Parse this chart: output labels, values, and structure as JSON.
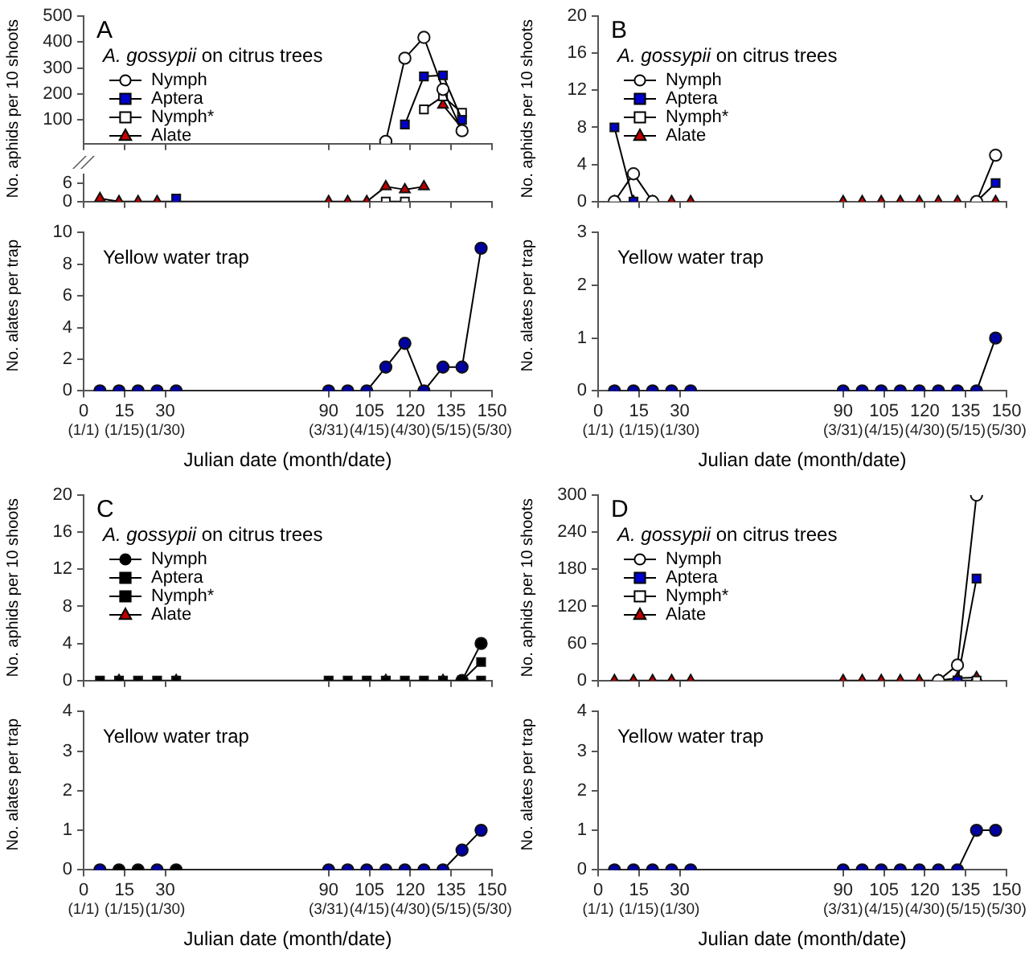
{
  "chart_data": [
    {
      "type": "line",
      "title": "A",
      "subtitle": "A. gossypii on citrus trees",
      "ylabel": "No. aphids per 10 shoots",
      "x": [
        111,
        118,
        125,
        132,
        139
      ],
      "xlim": [
        0,
        150
      ],
      "xticks": [
        0,
        15,
        30,
        90,
        105,
        120,
        135,
        150
      ],
      "ylim": [
        9,
        500
      ],
      "yticks": [
        100,
        200,
        300,
        400,
        500
      ],
      "tick_labels": "y",
      "legend": "left",
      "series": [
        {
          "name": "Nymph",
          "color": "#ffffff",
          "marker": "circle",
          "values": [
            18,
            338,
            418,
            218,
            59
          ]
        },
        {
          "name": "Aptera",
          "color": "#0000cc",
          "marker": "square",
          "values": [
            null,
            83,
            268,
            272,
            101
          ]
        },
        {
          "name": "Nymph*",
          "color": "#ffffff",
          "marker": "square",
          "values": [
            null,
            null,
            141,
            191,
            128
          ]
        },
        {
          "name": "Alate",
          "color": "#c00000",
          "marker": "triangle",
          "values": [
            null,
            null,
            null,
            158,
            68
          ]
        }
      ]
    },
    {
      "type": "line",
      "x": [
        6,
        13,
        20,
        27,
        34,
        90,
        97,
        104,
        111,
        118,
        125
      ],
      "xlim": [
        0,
        150
      ],
      "xticks": [
        0,
        15,
        30,
        90,
        105,
        120,
        135,
        150
      ],
      "ylim": [
        0,
        9
      ],
      "yticks": [
        0,
        6
      ],
      "tick_labels": "y",
      "series": [
        {
          "color": "#0000cc",
          "marker": "square",
          "values": [
            null,
            null,
            null,
            null,
            1,
            null,
            null,
            null,
            null,
            null,
            null
          ]
        },
        {
          "color": "#ffffff",
          "marker": "square",
          "values": [
            null,
            null,
            null,
            null,
            null,
            null,
            null,
            null,
            0,
            0,
            null
          ]
        },
        {
          "color": "#c00000",
          "marker": "triangle",
          "values": [
            1,
            0,
            0,
            0,
            0,
            0,
            0,
            0,
            5,
            4,
            5
          ]
        }
      ]
    },
    {
      "type": "line",
      "title": "Yellow water trap",
      "ylabel": "No. alates per trap",
      "xlabel": "Julian date (month/date)",
      "x": [
        6,
        13,
        20,
        27,
        34,
        90,
        97,
        104,
        111,
        118,
        125,
        132,
        139,
        146
      ],
      "xlim": [
        0,
        150
      ],
      "xticks": [
        0,
        15,
        30,
        90,
        105,
        120,
        135,
        150
      ],
      "ylim": [
        0,
        10
      ],
      "yticks": [
        0,
        2,
        4,
        6,
        8,
        10
      ],
      "marker": "circle",
      "annotations": [
        "(1/1)",
        "(1/15)",
        "(1/30)",
        "(3/31)",
        "(4/15)",
        "(4/30)",
        "(5/15)",
        "(5/30)"
      ],
      "series": [
        {
          "color": "#0000a0",
          "values": [
            0,
            0,
            0,
            0,
            0,
            0,
            0,
            0,
            1.5,
            3,
            0,
            1.5,
            1.5,
            9
          ]
        }
      ]
    },
    {
      "type": "line",
      "title": "B",
      "subtitle": "A. gossypii on citrus trees",
      "ylabel": "No. aphids per 10 shoots",
      "x": [
        6,
        13,
        20,
        27,
        34,
        90,
        97,
        104,
        111,
        118,
        125,
        132,
        139,
        146
      ],
      "xlim": [
        0,
        150
      ],
      "xticks": [
        0,
        15,
        30,
        90,
        105,
        120,
        135,
        150
      ],
      "ylim": [
        0,
        20
      ],
      "yticks": [
        0,
        4,
        8,
        12,
        16,
        20
      ],
      "tick_labels": "y",
      "legend": "left",
      "series": [
        {
          "name": "Nymph",
          "color": "#ffffff",
          "marker": "circle",
          "values": [
            0,
            3,
            0,
            null,
            null,
            null,
            null,
            null,
            null,
            null,
            null,
            null,
            0,
            5
          ]
        },
        {
          "name": "Aptera",
          "color": "#0000cc",
          "marker": "square",
          "values": [
            8,
            0,
            null,
            null,
            null,
            null,
            null,
            null,
            null,
            null,
            null,
            null,
            0,
            2
          ]
        },
        {
          "name": "Nymph*",
          "color": "#ffffff",
          "marker": "square",
          "values": [
            null,
            null,
            null,
            null,
            null,
            null,
            null,
            null,
            null,
            null,
            null,
            null,
            null,
            null
          ]
        },
        {
          "name": "Alate",
          "type": "scatter",
          "color": "#c00000",
          "marker": "triangle",
          "values": [
            0,
            0,
            0,
            0,
            0,
            0,
            0,
            0,
            0,
            0,
            0,
            0,
            null,
            0
          ]
        }
      ]
    },
    {
      "type": "line",
      "title": "Yellow water trap",
      "ylabel": "No. alates per trap",
      "xlabel": "Julian date (month/date)",
      "x": [
        6,
        13,
        20,
        27,
        34,
        90,
        97,
        104,
        111,
        118,
        125,
        132,
        139,
        146
      ],
      "xlim": [
        0,
        150
      ],
      "xticks": [
        0,
        15,
        30,
        90,
        105,
        120,
        135,
        150
      ],
      "ylim": [
        0,
        3
      ],
      "yticks": [
        0,
        1,
        2,
        3
      ],
      "marker": "circle",
      "annotations": [
        "(1/1)",
        "(1/15)",
        "(1/30)",
        "(3/31)",
        "(4/15)",
        "(4/30)",
        "(5/15)",
        "(5/30)"
      ],
      "series": [
        {
          "color": "#0000a0",
          "values": [
            0,
            0,
            0,
            0,
            0,
            0,
            0,
            0,
            0,
            0,
            0,
            0,
            0,
            1
          ]
        }
      ]
    },
    {
      "type": "line",
      "title": "C",
      "subtitle": "A. gossypii on citrus trees",
      "ylabel": "No. aphids per 10 shoots",
      "x": [
        6,
        13,
        20,
        27,
        34,
        90,
        97,
        104,
        111,
        118,
        125,
        132,
        139,
        146
      ],
      "xlim": [
        0,
        150
      ],
      "xticks": [
        0,
        15,
        30,
        90,
        105,
        120,
        135,
        150
      ],
      "ylim": [
        0,
        20
      ],
      "yticks": [
        0,
        4,
        8,
        12,
        16,
        20
      ],
      "tick_labels": "y",
      "legend": "left",
      "series": [
        {
          "name": "Nymph",
          "color": "#000000",
          "marker": "circle",
          "values": [
            null,
            null,
            null,
            null,
            null,
            null,
            null,
            null,
            null,
            null,
            null,
            null,
            0,
            4
          ]
        },
        {
          "name": "Aptera",
          "color": "#000000",
          "marker": "square",
          "values": [
            null,
            null,
            null,
            null,
            null,
            null,
            null,
            null,
            null,
            null,
            null,
            null,
            0,
            2
          ]
        },
        {
          "name": "Nymph*",
          "color": "#000000",
          "marker": "square",
          "values": [
            0,
            0,
            0,
            0,
            0,
            0,
            0,
            0,
            0,
            0,
            0,
            0,
            0,
            0
          ]
        },
        {
          "name": "Alate",
          "type": "scatter",
          "color": "#c00000",
          "marker": "triangle",
          "values": [
            null,
            0,
            null,
            null,
            0,
            null,
            null,
            null,
            0,
            null,
            null,
            0,
            null,
            null
          ]
        }
      ]
    },
    {
      "type": "line",
      "title": "Yellow water trap",
      "ylabel": "No. alates per trap",
      "xlabel": "Julian date (month/date)",
      "x": [
        6,
        13,
        20,
        27,
        34,
        90,
        97,
        104,
        111,
        118,
        125,
        132,
        139,
        146
      ],
      "xlim": [
        0,
        150
      ],
      "xticks": [
        0,
        15,
        30,
        90,
        105,
        120,
        135,
        150
      ],
      "ylim": [
        0,
        4
      ],
      "yticks": [
        0,
        1,
        2,
        3,
        4
      ],
      "marker": "circle",
      "annotations": [
        "(1/1)",
        "(1/15)",
        "(1/30)",
        "(3/31)",
        "(4/15)",
        "(4/30)",
        "(5/15)",
        "(5/30)"
      ],
      "series": [
        {
          "colors": [
            "#0000a0",
            "#000000",
            "#000000",
            "#0000a0",
            "#000000",
            "#0000a0",
            "#0000a0",
            "#0000a0",
            "#0000a0",
            "#0000a0",
            "#0000a0",
            "#0000a0",
            "#0000a0",
            "#0000a0"
          ],
          "values": [
            0,
            0,
            0,
            0,
            0,
            0,
            0,
            0,
            0,
            0,
            0,
            0,
            0.5,
            1
          ]
        }
      ]
    },
    {
      "type": "line",
      "title": "D",
      "subtitle": "A. gossypii on citrus trees",
      "ylabel": "No. aphids per 10 shoots",
      "x": [
        6,
        13,
        20,
        27,
        34,
        90,
        97,
        104,
        111,
        118,
        125,
        132,
        139
      ],
      "xlim": [
        0,
        150
      ],
      "xticks": [
        0,
        15,
        30,
        90,
        105,
        120,
        135,
        150
      ],
      "ylim": [
        0,
        300
      ],
      "yticks": [
        0,
        60,
        120,
        180,
        240,
        300
      ],
      "tick_labels": "y",
      "legend": "left",
      "series": [
        {
          "name": "Nymph",
          "color": "#ffffff",
          "marker": "circle",
          "values": [
            null,
            null,
            null,
            null,
            null,
            null,
            null,
            null,
            null,
            null,
            0,
            25,
            300
          ]
        },
        {
          "name": "Aptera",
          "color": "#0000cc",
          "marker": "square",
          "values": [
            null,
            null,
            null,
            null,
            null,
            null,
            null,
            null,
            null,
            null,
            null,
            0,
            165
          ]
        },
        {
          "name": "Nymph*",
          "color": "#ffffff",
          "marker": "square",
          "values": [
            null,
            null,
            null,
            null,
            null,
            null,
            null,
            null,
            null,
            null,
            null,
            0,
            0
          ]
        },
        {
          "name": "Alate",
          "color": "#c00000",
          "marker": "triangle",
          "values": [
            0,
            0,
            0,
            0,
            0,
            0,
            0,
            0,
            0,
            0,
            0,
            4,
            5
          ]
        }
      ]
    },
    {
      "type": "line",
      "title": "Yellow water trap",
      "ylabel": "No. alates per trap",
      "xlabel": "Julian date (month/date)",
      "x": [
        6,
        13,
        20,
        27,
        34,
        90,
        97,
        104,
        111,
        118,
        125,
        132,
        139,
        146
      ],
      "xlim": [
        0,
        150
      ],
      "xticks": [
        0,
        15,
        30,
        90,
        105,
        120,
        135,
        150
      ],
      "ylim": [
        0,
        4
      ],
      "yticks": [
        0,
        1,
        2,
        3,
        4
      ],
      "marker": "circle",
      "annotations": [
        "(1/1)",
        "(1/15)",
        "(1/30)",
        "(3/31)",
        "(4/15)",
        "(4/30)",
        "(5/15)",
        "(5/30)"
      ],
      "series": [
        {
          "color": "#0000a0",
          "values": [
            0,
            0,
            0,
            0,
            0,
            0,
            0,
            0,
            0,
            0,
            0,
            0,
            1,
            1
          ]
        }
      ]
    }
  ]
}
